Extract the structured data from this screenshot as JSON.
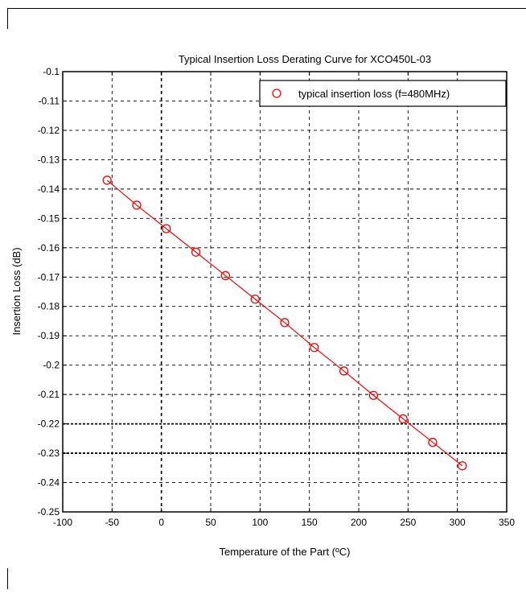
{
  "chart_data": {
    "type": "line",
    "title": "Typical Insertion Loss Derating Curve for XCO450L-03",
    "xlabel": "Temperature of the Part (ºC)",
    "ylabel": "Insertion Loss (dB)",
    "xlim": [
      -100,
      350
    ],
    "ylim": [
      -0.25,
      -0.1
    ],
    "x_ticks": [
      "-100",
      "-50",
      "0",
      "50",
      "100",
      "150",
      "200",
      "250",
      "300",
      "350"
    ],
    "y_ticks": [
      "-0.1",
      "-0.11",
      "-0.12",
      "-0.13",
      "-0.14",
      "-0.15",
      "-0.16",
      "-0.17",
      "-0.18",
      "-0.19",
      "-0.2",
      "-0.21",
      "-0.22",
      "-0.23",
      "-0.24",
      "-0.25"
    ],
    "grid": true,
    "legend_position": "top-right",
    "series": [
      {
        "name": "typical insertion loss (f=480MHz)",
        "marker": "circle",
        "color": "#ff0000",
        "x": [
          -55,
          -25,
          5,
          35,
          65,
          95,
          125,
          155,
          185,
          215,
          245,
          275,
          305
        ],
        "y": [
          -0.137,
          -0.1455,
          -0.1535,
          -0.1615,
          -0.1695,
          -0.1775,
          -0.1855,
          -0.194,
          -0.202,
          -0.2103,
          -0.2183,
          -0.2263,
          -0.2343
        ]
      }
    ]
  }
}
